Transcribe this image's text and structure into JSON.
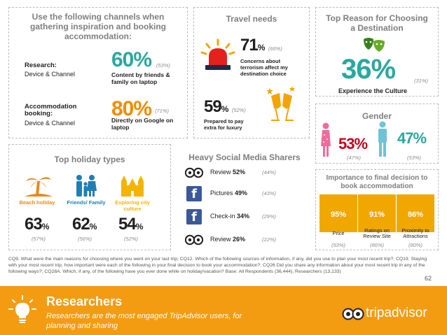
{
  "channels": {
    "title": "Use the following channels when gathering inspiration and booking accommodation:",
    "research": {
      "label": "Research:",
      "sublabel": "Device & Channel",
      "pct": "60%",
      "prev": "(53%)",
      "desc": "Content by friends & family on laptop"
    },
    "booking": {
      "label": "Accommodation booking:",
      "sublabel": "Device & Channel",
      "pct": "80%",
      "prev": "(71%)",
      "desc": "Directly on Google on laptop"
    }
  },
  "travel_needs": {
    "title": "Travel needs",
    "terror": {
      "pct": "71",
      "unit": "%",
      "prev": "(66%)",
      "desc": "Concerns about terrorism affect my destination choice"
    },
    "luxury": {
      "pct": "59",
      "unit": "%",
      "prev": "(52%)",
      "desc": "Prepared to pay extra for luxury"
    }
  },
  "top_reason": {
    "title": "Top Reason for Choosing a Destination",
    "pct": "36%",
    "prev": "(31%)",
    "desc": "Experience the Culture"
  },
  "gender": {
    "title": "Gender",
    "female_pct": "53%",
    "female_prev": "(47%)",
    "male_pct": "47%",
    "male_prev": "(53%)"
  },
  "holiday_types": {
    "title": "Top holiday types",
    "items": [
      {
        "label": "Beach holiday",
        "pct": "63",
        "unit": "%",
        "prev": "(57%)"
      },
      {
        "label": "Friends/ Family",
        "pct": "62",
        "unit": "%",
        "prev": "(56%)"
      },
      {
        "label": "Exploring city culture",
        "pct": "54",
        "unit": "%",
        "prev": "(52%)"
      }
    ]
  },
  "social": {
    "title": "Heavy Social Media Sharers",
    "rows": [
      {
        "icon": "tripadvisor-owl-icon",
        "label": "Review",
        "pct": "52%",
        "prev": "(44%)"
      },
      {
        "icon": "facebook-icon",
        "label": "Pictures",
        "pct": "49%",
        "prev": "(43%)"
      },
      {
        "icon": "facebook-icon",
        "label": "Check-in",
        "pct": "34%",
        "prev": "(29%)"
      },
      {
        "icon": "tripadvisor-owl-icon",
        "label": "Review",
        "pct": "26%",
        "prev": "(22%)"
      }
    ]
  },
  "importance": {
    "title": "Importance to final decision to book accommodation",
    "items": [
      {
        "value": "95%",
        "label": "Price",
        "prev": "(93%)"
      },
      {
        "value": "91%",
        "label": "Ratings on Review Site",
        "prev": "(86%)"
      },
      {
        "value": "86%",
        "label": "Proximity to Attractions",
        "prev": "(80%)"
      }
    ]
  },
  "footnote": "CQ9. What were the main reasons for choosing where you went on your last trip; CQ12. Which of the following sources of information, if any, did you use to plan your most recent trip?; CQ19. Staying with your most recent trip, how important were each of the following in your final decision to book your accommodation?; CQ26 Did you share any information about your most recent trip in any of the following ways?; CQ28A. Which, if any, of the following have you ever done while on holiday/vacation? Base: All Respondents (36,444), Researchers (13,133)",
  "page_number": "62",
  "banner": {
    "title": "Researchers",
    "subtitle": "Researchers are the most engaged TripAdvisor users, for planning and sharing",
    "brand": "tripadvisor",
    "colors": {
      "banner": "#f39c12",
      "accent_orange": "#f28c00",
      "teal": "#2aa89e",
      "gold_bar": "#f0a800"
    }
  }
}
